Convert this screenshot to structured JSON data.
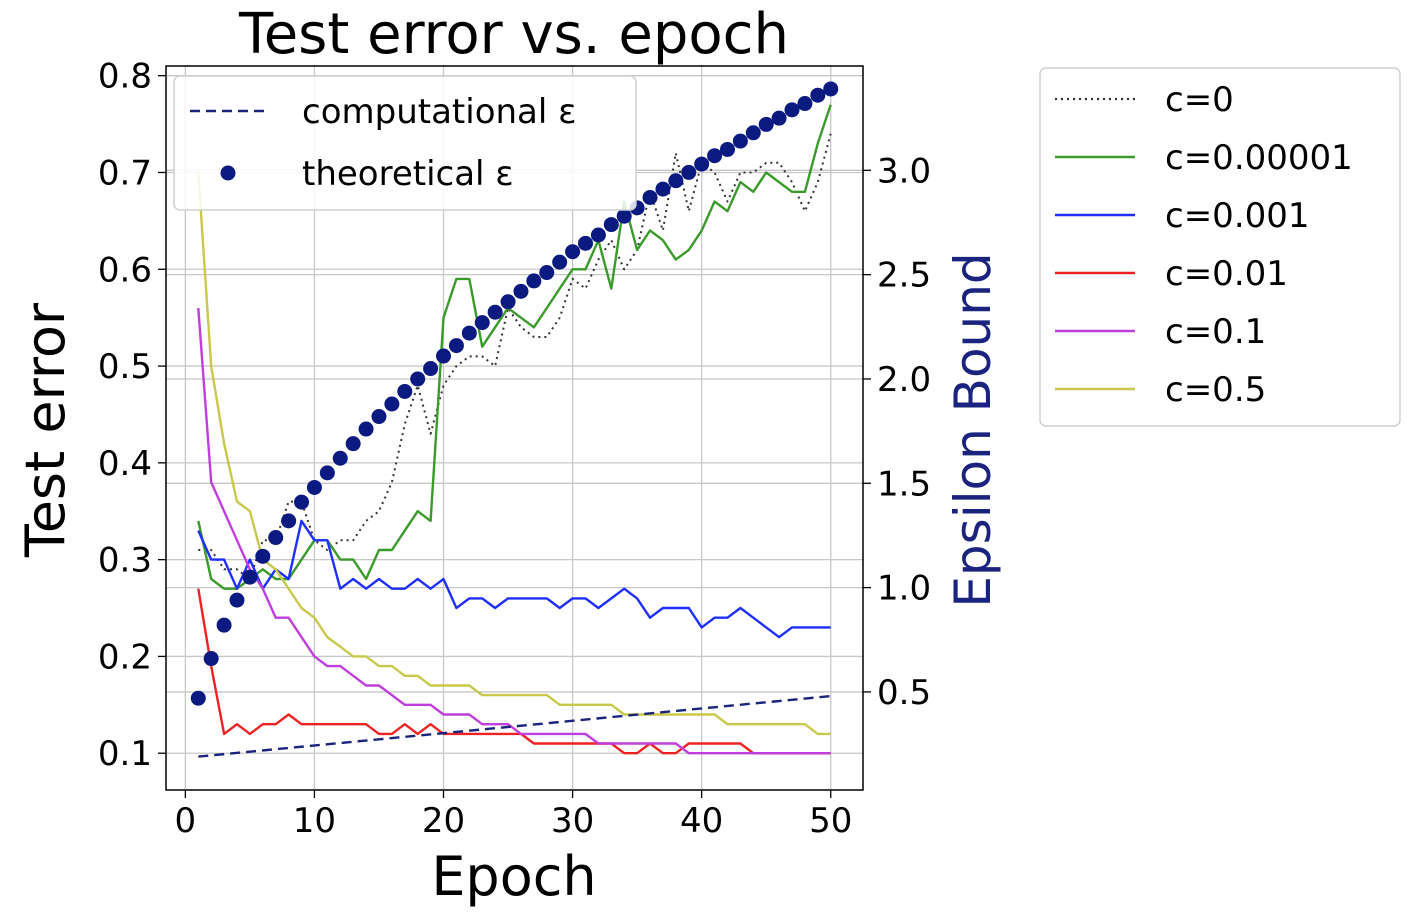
{
  "chart_data": {
    "type": "line",
    "title": "Test error vs. epoch",
    "xlabel": "Epoch",
    "ylabel": "Test error",
    "y2label": "Epsilon Bound",
    "y2label_color": "#1a237e",
    "xlim": [
      -1.5,
      52.5
    ],
    "ylim": [
      0.062,
      0.81
    ],
    "y2lim": [
      0.03,
      3.5
    ],
    "xticks": [
      "0",
      "10",
      "20",
      "30",
      "40",
      "50"
    ],
    "yticks": [
      "0.1",
      "0.2",
      "0.3",
      "0.4",
      "0.5",
      "0.6",
      "0.7",
      "0.8"
    ],
    "y2ticks": [
      "0.5",
      "1.0",
      "1.5",
      "2.0",
      "2.5",
      "3.0"
    ],
    "grid": true,
    "epochs": [
      1,
      2,
      3,
      4,
      5,
      6,
      7,
      8,
      9,
      10,
      11,
      12,
      13,
      14,
      15,
      16,
      17,
      18,
      19,
      20,
      21,
      22,
      23,
      24,
      25,
      26,
      27,
      28,
      29,
      30,
      31,
      32,
      33,
      34,
      35,
      36,
      37,
      38,
      39,
      40,
      41,
      42,
      43,
      44,
      45,
      46,
      47,
      48,
      49,
      50
    ],
    "series": [
      {
        "name": "c=0",
        "color": "#333333",
        "style": "dotted",
        "axis": "left",
        "values": [
          0.31,
          0.31,
          0.29,
          0.29,
          0.28,
          0.32,
          0.32,
          0.36,
          0.36,
          0.32,
          0.31,
          0.32,
          0.32,
          0.34,
          0.35,
          0.38,
          0.44,
          0.48,
          0.43,
          0.48,
          0.5,
          0.51,
          0.51,
          0.5,
          0.56,
          0.54,
          0.53,
          0.53,
          0.55,
          0.59,
          0.58,
          0.61,
          0.63,
          0.6,
          0.62,
          0.68,
          0.64,
          0.72,
          0.66,
          0.71,
          0.7,
          0.67,
          0.7,
          0.7,
          0.71,
          0.71,
          0.69,
          0.66,
          0.69,
          0.74
        ]
      },
      {
        "name": "c=0.00001",
        "color": "#3a9a2a",
        "style": "solid",
        "axis": "left",
        "values": [
          0.34,
          0.28,
          0.27,
          0.27,
          0.28,
          0.29,
          0.28,
          0.28,
          0.3,
          0.32,
          0.32,
          0.3,
          0.3,
          0.28,
          0.31,
          0.31,
          0.33,
          0.35,
          0.34,
          0.55,
          0.59,
          0.59,
          0.52,
          0.54,
          0.56,
          0.55,
          0.54,
          0.56,
          0.58,
          0.6,
          0.6,
          0.63,
          0.58,
          0.67,
          0.62,
          0.64,
          0.63,
          0.61,
          0.62,
          0.64,
          0.67,
          0.66,
          0.69,
          0.68,
          0.7,
          0.69,
          0.68,
          0.68,
          0.73,
          0.77
        ]
      },
      {
        "name": "c=0.001",
        "color": "#1f2fff",
        "style": "solid",
        "axis": "left",
        "values": [
          0.33,
          0.3,
          0.3,
          0.27,
          0.3,
          0.27,
          0.29,
          0.28,
          0.34,
          0.32,
          0.32,
          0.27,
          0.28,
          0.27,
          0.28,
          0.27,
          0.27,
          0.28,
          0.27,
          0.28,
          0.25,
          0.26,
          0.26,
          0.25,
          0.26,
          0.26,
          0.26,
          0.26,
          0.25,
          0.26,
          0.26,
          0.25,
          0.26,
          0.27,
          0.26,
          0.24,
          0.25,
          0.25,
          0.25,
          0.23,
          0.24,
          0.24,
          0.25,
          0.24,
          0.23,
          0.22,
          0.23,
          0.23,
          0.23,
          0.23
        ]
      },
      {
        "name": "c=0.01",
        "color": "#ee2222",
        "style": "solid",
        "axis": "left",
        "values": [
          0.27,
          0.19,
          0.12,
          0.13,
          0.12,
          0.13,
          0.13,
          0.14,
          0.13,
          0.13,
          0.13,
          0.13,
          0.13,
          0.13,
          0.12,
          0.12,
          0.13,
          0.12,
          0.13,
          0.12,
          0.12,
          0.12,
          0.12,
          0.12,
          0.12,
          0.12,
          0.11,
          0.11,
          0.11,
          0.11,
          0.11,
          0.11,
          0.11,
          0.1,
          0.1,
          0.11,
          0.1,
          0.1,
          0.11,
          0.11,
          0.11,
          0.11,
          0.11,
          0.1,
          0.1,
          0.1,
          0.1,
          0.1,
          0.1,
          0.1
        ]
      },
      {
        "name": "c=0.1",
        "color": "#c13ede",
        "style": "solid",
        "axis": "left",
        "values": [
          0.56,
          0.38,
          0.35,
          0.32,
          0.29,
          0.27,
          0.24,
          0.24,
          0.22,
          0.2,
          0.19,
          0.19,
          0.18,
          0.17,
          0.17,
          0.16,
          0.15,
          0.15,
          0.15,
          0.14,
          0.14,
          0.14,
          0.13,
          0.13,
          0.13,
          0.12,
          0.12,
          0.12,
          0.12,
          0.12,
          0.12,
          0.11,
          0.11,
          0.11,
          0.11,
          0.11,
          0.11,
          0.11,
          0.1,
          0.1,
          0.1,
          0.1,
          0.1,
          0.1,
          0.1,
          0.1,
          0.1,
          0.1,
          0.1,
          0.1
        ]
      },
      {
        "name": "c=0.5",
        "color": "#c8c84a",
        "style": "solid",
        "axis": "left",
        "values": [
          0.7,
          0.5,
          0.42,
          0.36,
          0.35,
          0.3,
          0.29,
          0.27,
          0.25,
          0.24,
          0.22,
          0.21,
          0.2,
          0.2,
          0.19,
          0.19,
          0.18,
          0.18,
          0.17,
          0.17,
          0.17,
          0.17,
          0.16,
          0.16,
          0.16,
          0.16,
          0.16,
          0.16,
          0.15,
          0.15,
          0.15,
          0.15,
          0.15,
          0.14,
          0.14,
          0.14,
          0.14,
          0.14,
          0.14,
          0.14,
          0.14,
          0.13,
          0.13,
          0.13,
          0.13,
          0.13,
          0.13,
          0.13,
          0.12,
          0.12
        ]
      },
      {
        "name": "computational ε",
        "color": "#1a237e",
        "style": "dashed",
        "axis": "right",
        "x": [
          1,
          50
        ],
        "values": [
          0.19,
          0.48
        ]
      },
      {
        "name": "theoretical ε",
        "color": "#0a1a80",
        "style": "markers",
        "axis": "right",
        "values": [
          0.47,
          0.66,
          0.82,
          0.94,
          1.05,
          1.15,
          1.24,
          1.32,
          1.41,
          1.48,
          1.55,
          1.62,
          1.69,
          1.76,
          1.82,
          1.88,
          1.94,
          2.0,
          2.05,
          2.11,
          2.16,
          2.22,
          2.27,
          2.32,
          2.37,
          2.42,
          2.47,
          2.51,
          2.56,
          2.61,
          2.65,
          2.69,
          2.74,
          2.78,
          2.82,
          2.87,
          2.91,
          2.95,
          2.99,
          3.03,
          3.07,
          3.1,
          3.14,
          3.18,
          3.22,
          3.25,
          3.29,
          3.32,
          3.36,
          3.39
        ]
      }
    ],
    "legend_axes": {
      "placement": "top-left",
      "entries": [
        {
          "label": "computational ε",
          "style": "dashed",
          "color": "#1a237e"
        },
        {
          "label": "theoretical ε",
          "style": "markers",
          "color": "#0a1a80"
        }
      ]
    },
    "legend_outside": {
      "placement": "right",
      "entries": [
        {
          "label": "c=0",
          "style": "dotted",
          "color": "#333333"
        },
        {
          "label": "c=0.00001",
          "style": "solid",
          "color": "#3a9a2a"
        },
        {
          "label": "c=0.001",
          "style": "solid",
          "color": "#1f2fff"
        },
        {
          "label": "c=0.01",
          "style": "solid",
          "color": "#ee2222"
        },
        {
          "label": "c=0.1",
          "style": "solid",
          "color": "#c13ede"
        },
        {
          "label": "c=0.5",
          "style": "solid",
          "color": "#c8c84a"
        }
      ]
    }
  }
}
